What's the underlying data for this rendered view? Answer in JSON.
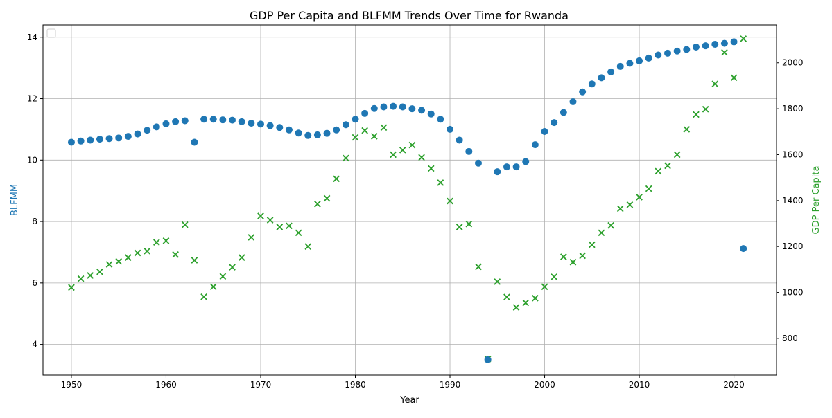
{
  "chart_data": {
    "type": "scatter",
    "title": "GDP Per Capita and BLFMM Trends Over Time for Rwanda",
    "xlabel": "Year",
    "ylabel_left": "BLFMM",
    "ylabel_right": "GDP Per Capita",
    "xlim": [
      1947,
      2024.5
    ],
    "ylim_left": [
      3,
      14.4
    ],
    "ylim_right": [
      640,
      2165
    ],
    "xticks": [
      1950,
      1960,
      1970,
      1980,
      1990,
      2000,
      2010,
      2020
    ],
    "yticks_left": [
      4,
      6,
      8,
      10,
      12,
      14
    ],
    "yticks_right": [
      800,
      1000,
      1200,
      1400,
      1600,
      1800,
      2000
    ],
    "grid": true,
    "legend_location": "upper-left (empty)",
    "colors": {
      "blfmm": "#1f77b4",
      "gdp": "#2ca02c"
    },
    "series": [
      {
        "axis": "left",
        "marker": "circle",
        "x": [
          1950,
          1951,
          1952,
          1953,
          1954,
          1955,
          1956,
          1957,
          1958,
          1959,
          1960,
          1961,
          1962,
          1963,
          1964,
          1965,
          1966,
          1967,
          1968,
          1969,
          1970,
          1971,
          1972,
          1973,
          1974,
          1975,
          1976,
          1977,
          1978,
          1979,
          1980,
          1981,
          1982,
          1983,
          1984,
          1985,
          1986,
          1987,
          1988,
          1989,
          1990,
          1991,
          1992,
          1993,
          1994,
          1995,
          1996,
          1997,
          1998,
          1999,
          2000,
          2001,
          2002,
          2003,
          2004,
          2005,
          2006,
          2007,
          2008,
          2009,
          2010,
          2011,
          2012,
          2013,
          2014,
          2015,
          2016,
          2017,
          2018,
          2019,
          2020,
          2021
        ],
        "values": [
          10.58,
          10.62,
          10.65,
          10.68,
          10.7,
          10.72,
          10.77,
          10.85,
          10.97,
          11.08,
          11.18,
          11.25,
          11.28,
          10.58,
          11.33,
          11.33,
          11.31,
          11.3,
          11.25,
          11.2,
          11.17,
          11.12,
          11.06,
          10.98,
          10.88,
          10.8,
          10.82,
          10.87,
          10.98,
          11.15,
          11.33,
          11.52,
          11.68,
          11.73,
          11.75,
          11.73,
          11.67,
          11.62,
          11.5,
          11.33,
          11.0,
          10.65,
          10.28,
          9.9,
          3.5,
          9.62,
          9.78,
          9.78,
          9.95,
          10.5,
          10.93,
          11.22,
          11.55,
          11.9,
          12.22,
          12.48,
          12.68,
          12.87,
          13.05,
          13.15,
          13.23,
          13.32,
          13.42,
          13.48,
          13.55,
          13.6,
          13.68,
          13.72,
          13.77,
          13.8,
          13.85,
          7.12
        ]
      },
      {
        "axis": "right",
        "marker": "x",
        "x": [
          1950,
          1951,
          1952,
          1953,
          1954,
          1955,
          1956,
          1957,
          1958,
          1959,
          1960,
          1961,
          1962,
          1963,
          1964,
          1965,
          1966,
          1967,
          1968,
          1969,
          1970,
          1971,
          1972,
          1973,
          1974,
          1975,
          1976,
          1977,
          1978,
          1979,
          1980,
          1981,
          1982,
          1983,
          1984,
          1985,
          1986,
          1987,
          1988,
          1989,
          1990,
          1991,
          1992,
          1993,
          1994,
          1995,
          1996,
          1997,
          1998,
          1999,
          2000,
          2001,
          2002,
          2003,
          2004,
          2005,
          2006,
          2007,
          2008,
          2009,
          2010,
          2011,
          2012,
          2013,
          2014,
          2015,
          2016,
          2017,
          2018,
          2019,
          2020,
          2021
        ],
        "values": [
          1022,
          1060,
          1074,
          1090,
          1122,
          1135,
          1152,
          1172,
          1180,
          1218,
          1225,
          1165,
          1295,
          1140,
          981,
          1025,
          1070,
          1110,
          1152,
          1240,
          1333,
          1315,
          1285,
          1290,
          1260,
          1200,
          1385,
          1410,
          1495,
          1585,
          1675,
          1705,
          1680,
          1718,
          1600,
          1620,
          1642,
          1588,
          1540,
          1478,
          1398,
          1285,
          1298,
          1112,
          710,
          1047,
          980,
          935,
          955,
          975,
          1025,
          1068,
          1155,
          1132,
          1160,
          1208,
          1260,
          1292,
          1365,
          1382,
          1415,
          1452,
          1528,
          1552,
          1600,
          1710,
          1775,
          1798,
          1908,
          2045,
          1935,
          2105
        ]
      }
    ]
  }
}
